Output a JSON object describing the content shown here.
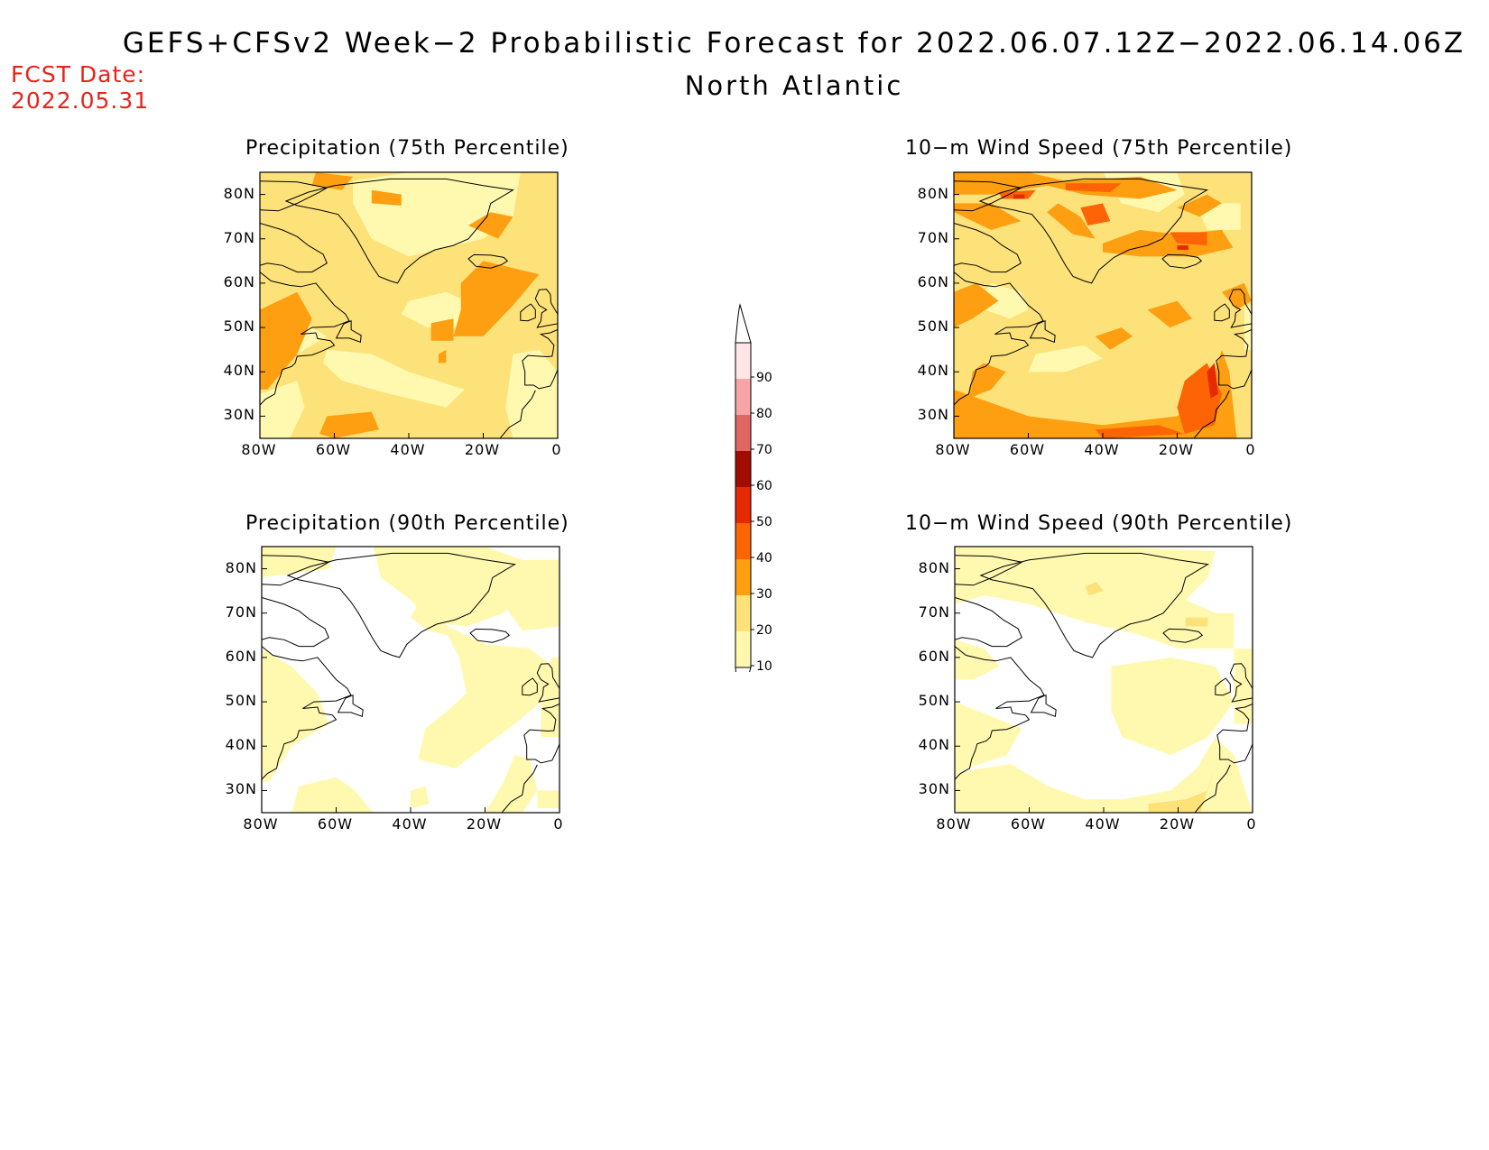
{
  "header": {
    "title": "GEFS+CFSv2 Week−2 Probabilistic Forecast for 2022.06.07.12Z−2022.06.14.06Z",
    "subtitle": "North Atlantic",
    "fcst_label": "FCST Date:",
    "fcst_value": "2022.05.31"
  },
  "panels": [
    {
      "id": "precip-75",
      "title": "Precipitation (75th Percentile)"
    },
    {
      "id": "wind-75",
      "title": "10−m Wind Speed (75th Percentile)"
    },
    {
      "id": "precip-90",
      "title": "Precipitation (90th Percentile)"
    },
    {
      "id": "wind-90",
      "title": "10−m Wind Speed (90th Percentile)"
    }
  ],
  "axes": {
    "lat_labels": [
      "80N",
      "70N",
      "60N",
      "50N",
      "40N",
      "30N"
    ],
    "lon_labels": [
      "80W",
      "60W",
      "40W",
      "20W",
      "0"
    ],
    "lat_range": [
      25,
      85
    ],
    "lon_range": [
      -80,
      0
    ]
  },
  "legend": {
    "levels": [
      "10",
      "20",
      "30",
      "40",
      "50",
      "60",
      "70",
      "80",
      "90"
    ],
    "colors": [
      "#fff9b0",
      "#fde27a",
      "#fd9f10",
      "#fc6405",
      "#e52a04",
      "#a00c00",
      "#e06666",
      "#f5a5a5",
      "#ffe6e6"
    ]
  }
}
